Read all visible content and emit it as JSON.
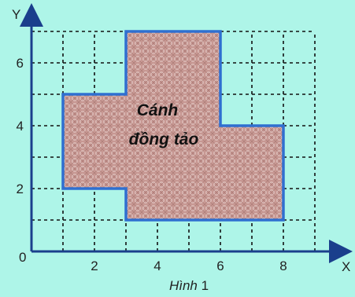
{
  "axes": {
    "x_name": "X",
    "y_name": "Y",
    "origin_label": "0",
    "x_tick_labels": [
      "2",
      "4",
      "6",
      "8"
    ],
    "y_tick_labels": [
      "2",
      "4",
      "6"
    ]
  },
  "region": {
    "label_line1": "Cánh",
    "label_line2": "đồng tảo",
    "vertices": [
      [
        3,
        1
      ],
      [
        8,
        1
      ],
      [
        8,
        4
      ],
      [
        6,
        4
      ],
      [
        6,
        7
      ],
      [
        3,
        7
      ],
      [
        3,
        5
      ],
      [
        1,
        5
      ],
      [
        1,
        2
      ],
      [
        3,
        2
      ]
    ],
    "fill_color": "#c79893",
    "border_color": "#2f6fd0"
  },
  "grid": {
    "x_range": [
      0,
      9
    ],
    "y_range": [
      0,
      7
    ],
    "style": "dashed"
  },
  "caption": {
    "word": "Hình",
    "number": "1"
  },
  "colors": {
    "background": "#aef5e8",
    "grid": "#111111"
  }
}
